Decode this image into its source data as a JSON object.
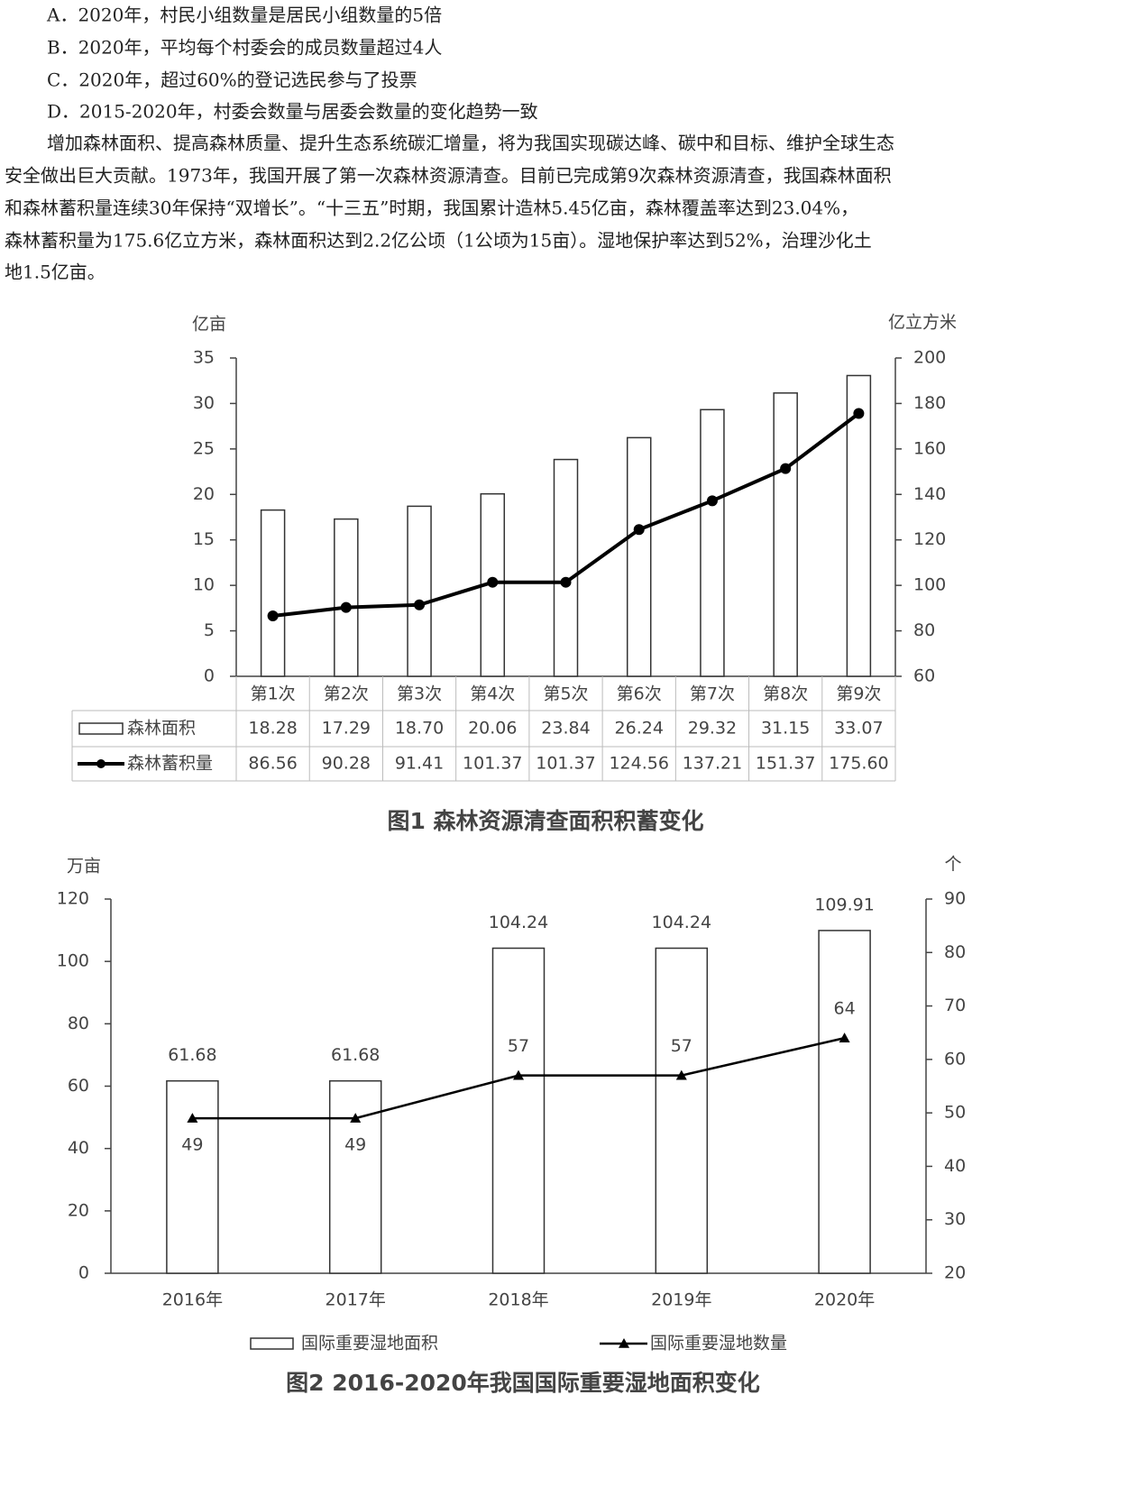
{
  "document": {
    "options": [
      "A．2020年，村民小组数量是居民小组数量的5倍",
      "B．2020年，平均每个村委会的成员数量超过4人",
      "C．2020年，超过60%的登记选民参与了投票",
      "D．2015-2020年，村委会数量与居委会数量的变化趋势一致"
    ],
    "paragraph": [
      "增加森林面积、提高森林质量、提升生态系统碳汇增量，将为我国实现碳达峰、碳中和目标、维护全球生态",
      "安全做出巨大贡献。1973年，我国开展了第一次森林资源清查。目前已完成第9次森林资源清查，我国森林面积",
      "和森林蓄积量连续30年保持“双增长”。“十三五”时期，我国累计造林5.45亿亩，森林覆盖率达到23.04%，",
      "森林蓄积量为175.6亿立方米，森林面积达到2.2亿公顷（1公顷为15亩）。湿地保护率达到52%，治理沙化土",
      "地1.5亿亩。"
    ]
  },
  "chart_data": [
    {
      "type": "bar",
      "title": "图1 森林资源清查面积积蓄变化",
      "y_unit": "亿亩",
      "y2_unit": "亿立方米",
      "categories": [
        "第1次",
        "第2次",
        "第3次",
        "第4次",
        "第5次",
        "第6次",
        "第7次",
        "第8次",
        "第9次"
      ],
      "series": [
        {
          "name": "森林面积",
          "type": "bar",
          "color": "#ffffff",
          "values": [
            18.28,
            17.29,
            18.7,
            20.06,
            23.84,
            26.24,
            29.32,
            31.15,
            33.07
          ],
          "value_labels": [
            "18.28",
            "17.29",
            "18.70",
            "20.06",
            "23.84",
            "26.24",
            "29.32",
            "31.15",
            "33.07"
          ]
        },
        {
          "name": "森林蓄积量",
          "type": "line",
          "axis": "y2",
          "color": "#000000",
          "values": [
            86.56,
            90.28,
            91.41,
            101.37,
            101.37,
            124.56,
            137.21,
            151.37,
            175.6
          ],
          "value_labels": [
            "86.56",
            "90.28",
            "91.41",
            "101.37",
            "101.37",
            "124.56",
            "137.21",
            "151.37",
            "175.60"
          ]
        }
      ],
      "ylim": [
        0,
        35
      ],
      "yticks": [
        0,
        5,
        10,
        15,
        20,
        25,
        30,
        35
      ],
      "y2lim": [
        60,
        200
      ],
      "y2ticks": [
        60,
        80,
        100,
        120,
        140,
        160,
        180,
        200
      ]
    },
    {
      "type": "bar",
      "title": "图2 2016-2020年我国国际重要湿地面积变化",
      "y_unit": "万亩",
      "y2_unit": "个",
      "categories": [
        "2016年",
        "2017年",
        "2018年",
        "2019年",
        "2020年"
      ],
      "series": [
        {
          "name": "国际重要湿地面积",
          "type": "bar",
          "color": "#ffffff",
          "values": [
            61.68,
            61.68,
            104.24,
            104.24,
            109.91
          ]
        },
        {
          "name": "国际重要湿地数量",
          "type": "line",
          "axis": "y2",
          "color": "#000000",
          "values": [
            49,
            49,
            57,
            57,
            64
          ]
        }
      ],
      "ylim": [
        0,
        120
      ],
      "yticks": [
        0,
        20,
        40,
        60,
        80,
        100,
        120
      ],
      "y2lim": [
        20,
        90
      ],
      "y2ticks": [
        20,
        30,
        40,
        50,
        60,
        70,
        80,
        90
      ]
    }
  ]
}
